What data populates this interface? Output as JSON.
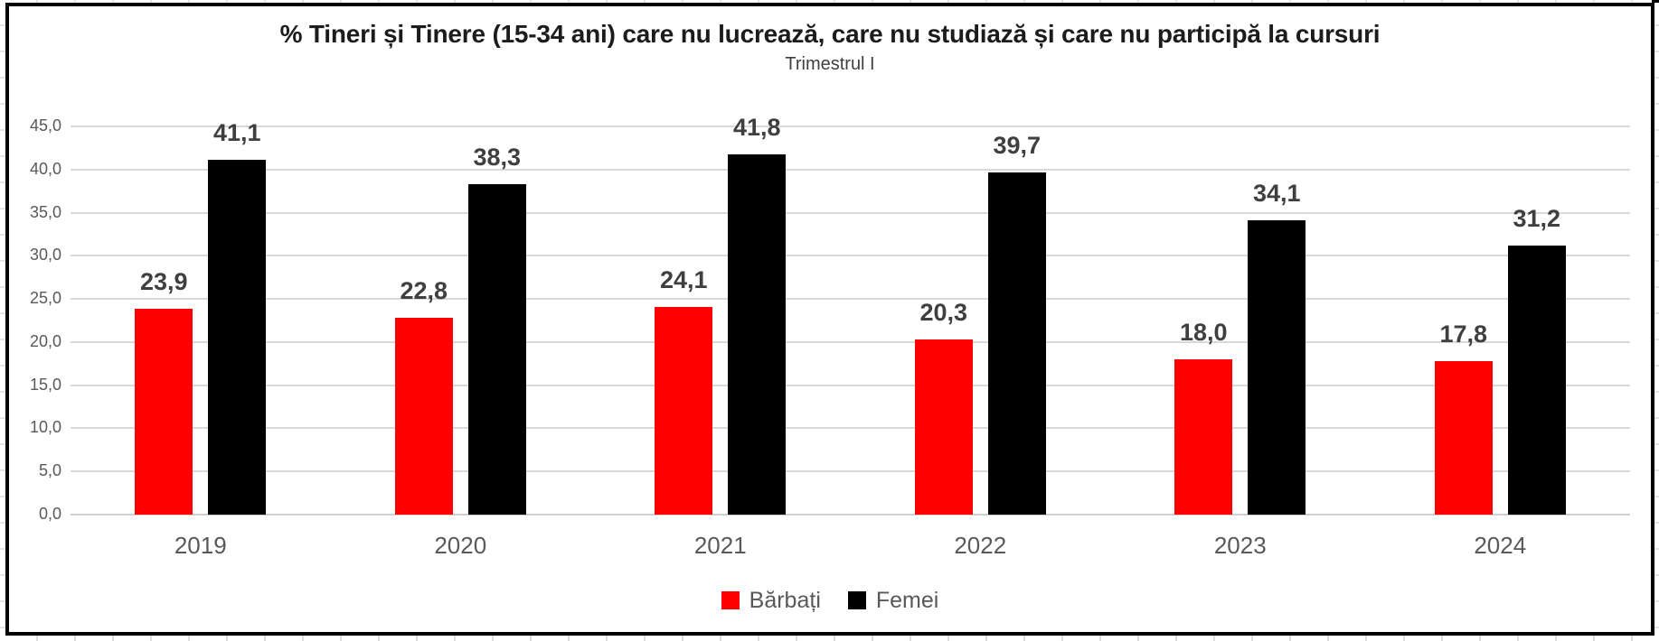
{
  "chart_data": {
    "type": "bar",
    "title": "% Tineri și Tinere (15-34 ani) care nu lucrează, care nu studiază și care nu participă la cursuri",
    "subtitle": "Trimestrul I",
    "categories": [
      "2019",
      "2020",
      "2021",
      "2022",
      "2023",
      "2024"
    ],
    "series": [
      {
        "name": "Bărbați",
        "color": "#ff0000",
        "values": [
          23.9,
          22.8,
          24.1,
          20.3,
          18.0,
          17.8
        ],
        "labels": [
          "23,9",
          "22,8",
          "24,1",
          "20,3",
          "18,0",
          "17,8"
        ]
      },
      {
        "name": "Femei",
        "color": "#000000",
        "values": [
          41.1,
          38.3,
          41.8,
          39.7,
          34.1,
          31.2
        ],
        "labels": [
          "41,1",
          "38,3",
          "41,8",
          "39,7",
          "34,1",
          "31,2"
        ]
      }
    ],
    "y_axis": {
      "min": 0,
      "max": 45,
      "step": 5,
      "tick_labels": [
        "0,0",
        "5,0",
        "10,0",
        "15,0",
        "20,0",
        "25,0",
        "30,0",
        "35,0",
        "40,0",
        "45,0"
      ]
    },
    "grid": true,
    "legend_position": "bottom",
    "colors": {
      "gridline": "#d9d9d9",
      "axis_text": "#595959",
      "data_label": "#3f3f3f",
      "title_text": "#1c1c1c"
    }
  }
}
